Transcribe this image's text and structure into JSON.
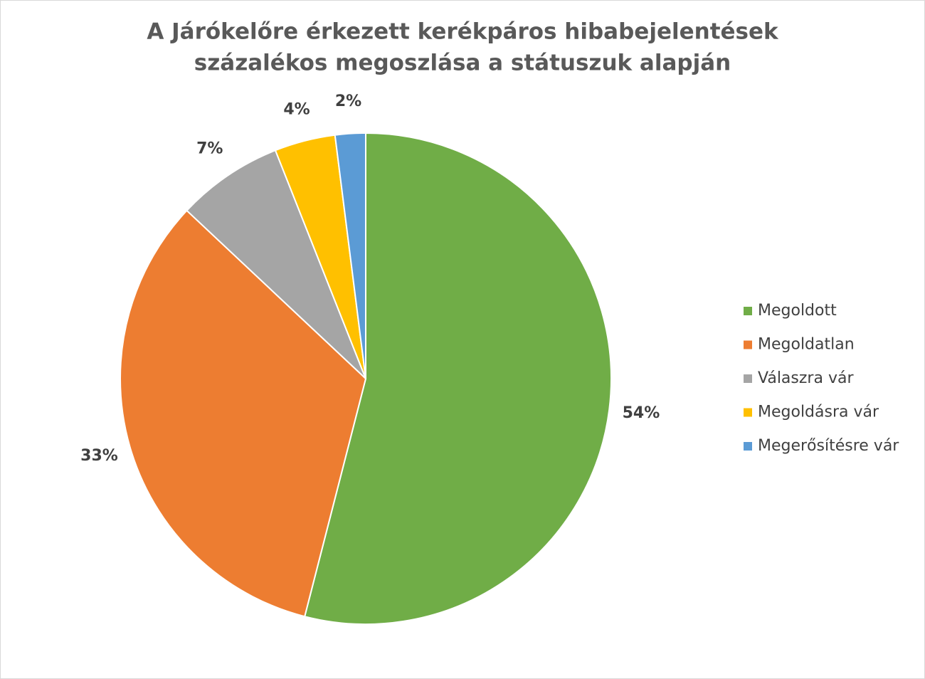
{
  "chart_data": {
    "type": "pie",
    "title": [
      "A Járókelőre érkezett kerékpáros hibabejelentések",
      "százalékos megoszlása a státuszuk alapján"
    ],
    "categories": [
      "Megoldott",
      "Megoldatlan",
      "Válaszra vár",
      "Megoldásra vár",
      "Megerősítésre vár"
    ],
    "values": [
      54,
      33,
      7,
      4,
      2
    ],
    "value_labels": [
      "54%",
      "33%",
      "7%",
      "4%",
      "2%"
    ],
    "colors": [
      "#70ad47",
      "#ed7d31",
      "#a5a5a5",
      "#ffc000",
      "#5b9bd5"
    ],
    "legend": "right"
  }
}
